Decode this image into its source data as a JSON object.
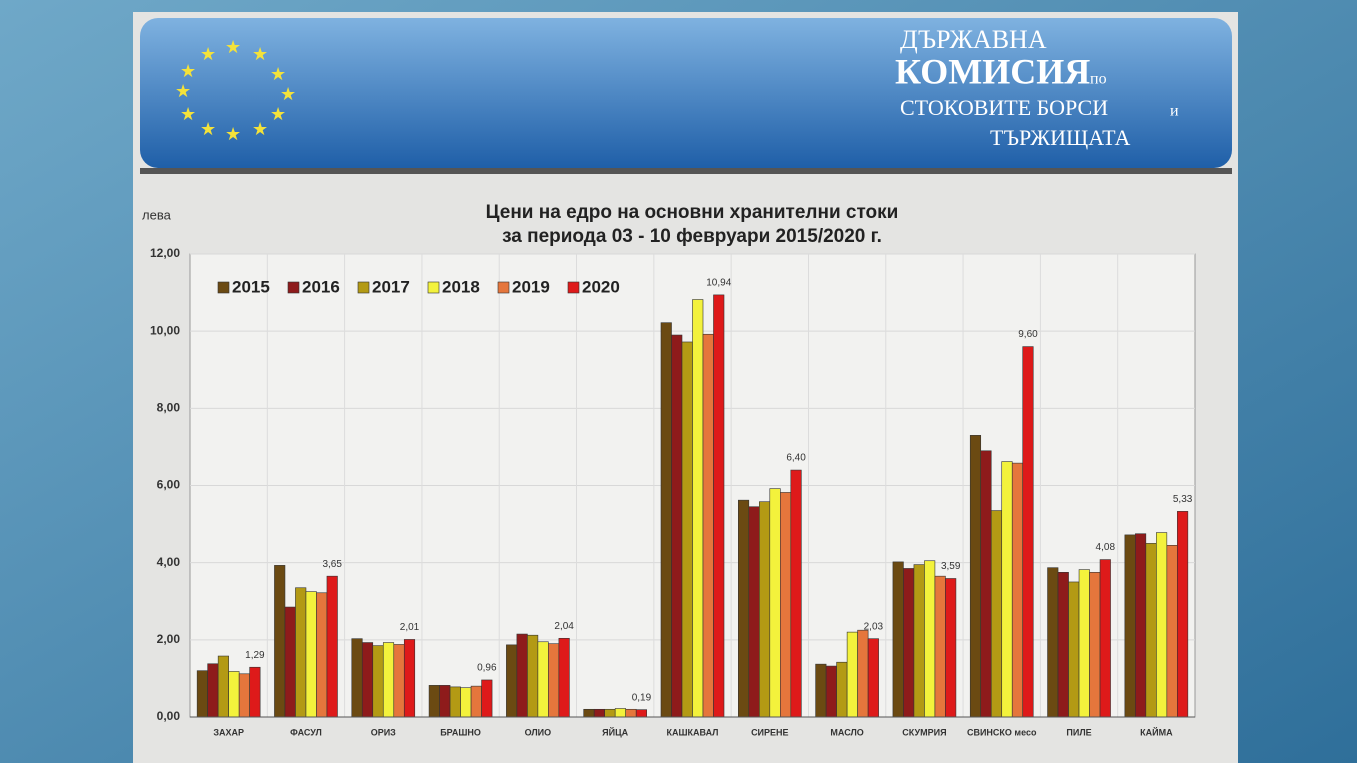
{
  "header": {
    "line1": "ДЪРЖАВНА",
    "line2": "КОМИСИЯ",
    "line2_small": "по",
    "line3": "СТОКОВИТЕ БОРСИ",
    "line3_small": "и",
    "line4": "ТЪРЖИЩАТА"
  },
  "chart_data": {
    "type": "bar",
    "title": "Цени на едро на основни хранителни стоки",
    "subtitle": "за периода  03 - 10 февруари 2015/2020 г.",
    "y_label": "лева",
    "categories": [
      "ЗАХАР",
      "ФАСУЛ",
      "ОРИЗ",
      "БРАШНО",
      "ОЛИО",
      "ЯЙЦА",
      "КАШКАВАЛ",
      "СИРЕНЕ",
      "МАСЛО",
      "СКУМРИЯ",
      "СВИНСКО месо",
      "ПИЛЕ",
      "КАЙМА"
    ],
    "series": [
      {
        "name": "2015",
        "color": "#6b4a12",
        "values": [
          1.2,
          3.93,
          2.03,
          0.82,
          1.87,
          0.2,
          10.22,
          5.62,
          1.37,
          4.02,
          7.3,
          3.87,
          4.72
        ]
      },
      {
        "name": "2016",
        "color": "#8e1b1b",
        "values": [
          1.38,
          2.85,
          1.93,
          0.82,
          2.15,
          0.2,
          9.9,
          5.45,
          1.32,
          3.85,
          6.9,
          3.75,
          4.75
        ]
      },
      {
        "name": "2017",
        "color": "#b39a14",
        "values": [
          1.58,
          3.35,
          1.85,
          0.78,
          2.12,
          0.2,
          9.72,
          5.58,
          1.42,
          3.95,
          5.35,
          3.5,
          4.5
        ]
      },
      {
        "name": "2018",
        "color": "#f3f23c",
        "values": [
          1.18,
          3.25,
          1.93,
          0.76,
          1.95,
          0.22,
          10.82,
          5.92,
          2.2,
          4.05,
          6.62,
          3.82,
          4.78
        ]
      },
      {
        "name": "2019",
        "color": "#e5763c",
        "values": [
          1.12,
          3.22,
          1.88,
          0.8,
          1.9,
          0.2,
          9.92,
          5.82,
          2.25,
          3.65,
          6.58,
          3.75,
          4.45
        ]
      },
      {
        "name": "2020",
        "color": "#de1a1a",
        "values": [
          1.29,
          3.65,
          2.01,
          0.96,
          2.04,
          0.19,
          10.94,
          6.4,
          2.03,
          3.59,
          9.6,
          4.08,
          5.33
        ],
        "value_labels": [
          "1,29",
          "3,65",
          "2,01",
          "0,96",
          "2,04",
          "0,19",
          "10,94",
          "6,40",
          "2,03",
          "3,59",
          "9,60",
          "4,08",
          "5,33"
        ]
      }
    ],
    "ylim": [
      0,
      12
    ],
    "yticks": [
      {
        "value": 0,
        "label": "0,00"
      },
      {
        "value": 2,
        "label": "2,00"
      },
      {
        "value": 4,
        "label": "4,00"
      },
      {
        "value": 6,
        "label": "6,00"
      },
      {
        "value": 8,
        "label": "8,00"
      },
      {
        "value": 10,
        "label": "10,00"
      },
      {
        "value": 12,
        "label": "12,00"
      }
    ],
    "grid": true,
    "legend": "top-left"
  }
}
